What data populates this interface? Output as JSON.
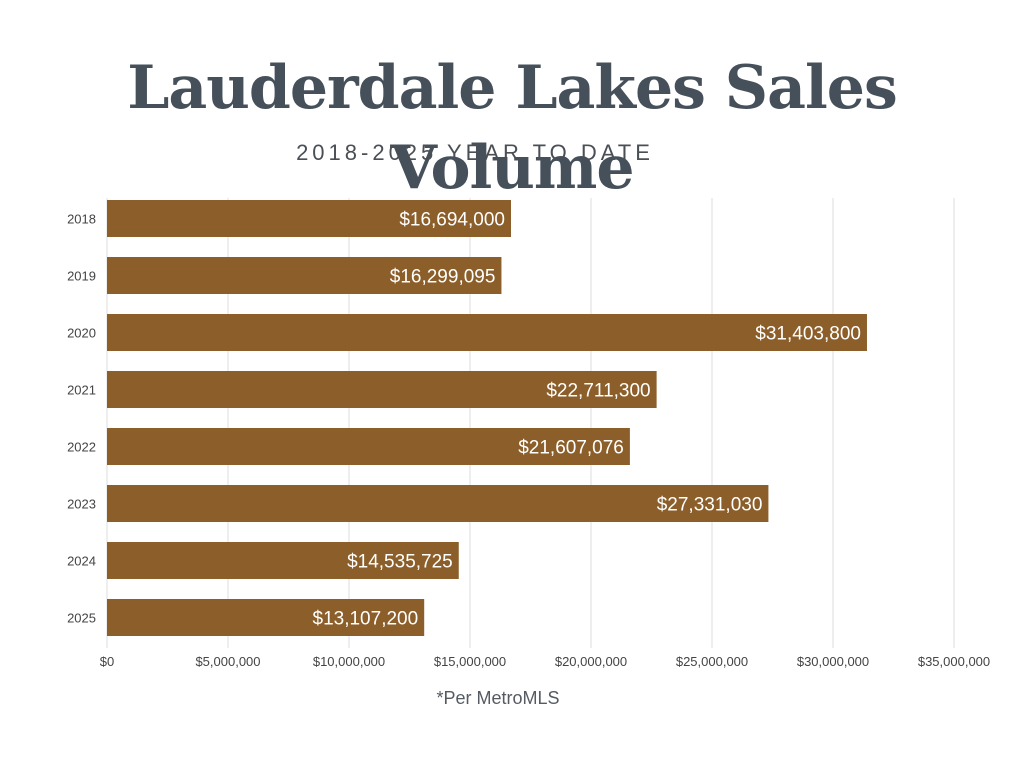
{
  "colors": {
    "bar": "#8B5E2A",
    "grid": "#dddddd",
    "bar_label": "#ffffff",
    "axis_text": "#444444"
  },
  "chart_data": {
    "type": "bar",
    "orientation": "horizontal",
    "title": "Lauderdale Lakes Sales Volume",
    "subtitle": "2018-2025 YEAR TO DATE",
    "categories": [
      "2018",
      "2019",
      "2020",
      "2021",
      "2022",
      "2023",
      "2024",
      "2025"
    ],
    "values": [
      16694000,
      16299095,
      31403800,
      22711300,
      21607076,
      27331030,
      14535725,
      13107200
    ],
    "data_labels": [
      "$16,694,000",
      "$16,299,095",
      "$31,403,800",
      "$22,711,300",
      "$21,607,076",
      "$27,331,030",
      "$14,535,725",
      "$13,107,200"
    ],
    "x_ticks": [
      0,
      5000000,
      10000000,
      15000000,
      20000000,
      25000000,
      30000000,
      35000000
    ],
    "x_tick_labels": [
      "$0",
      "$5,000,000",
      "$10,000,000",
      "$15,000,000",
      "$20,000,000",
      "$25,000,000",
      "$30,000,000",
      "$35,000,000"
    ],
    "xlim": [
      0,
      35000000
    ],
    "grid": true,
    "note": "*Per MetroMLS"
  }
}
